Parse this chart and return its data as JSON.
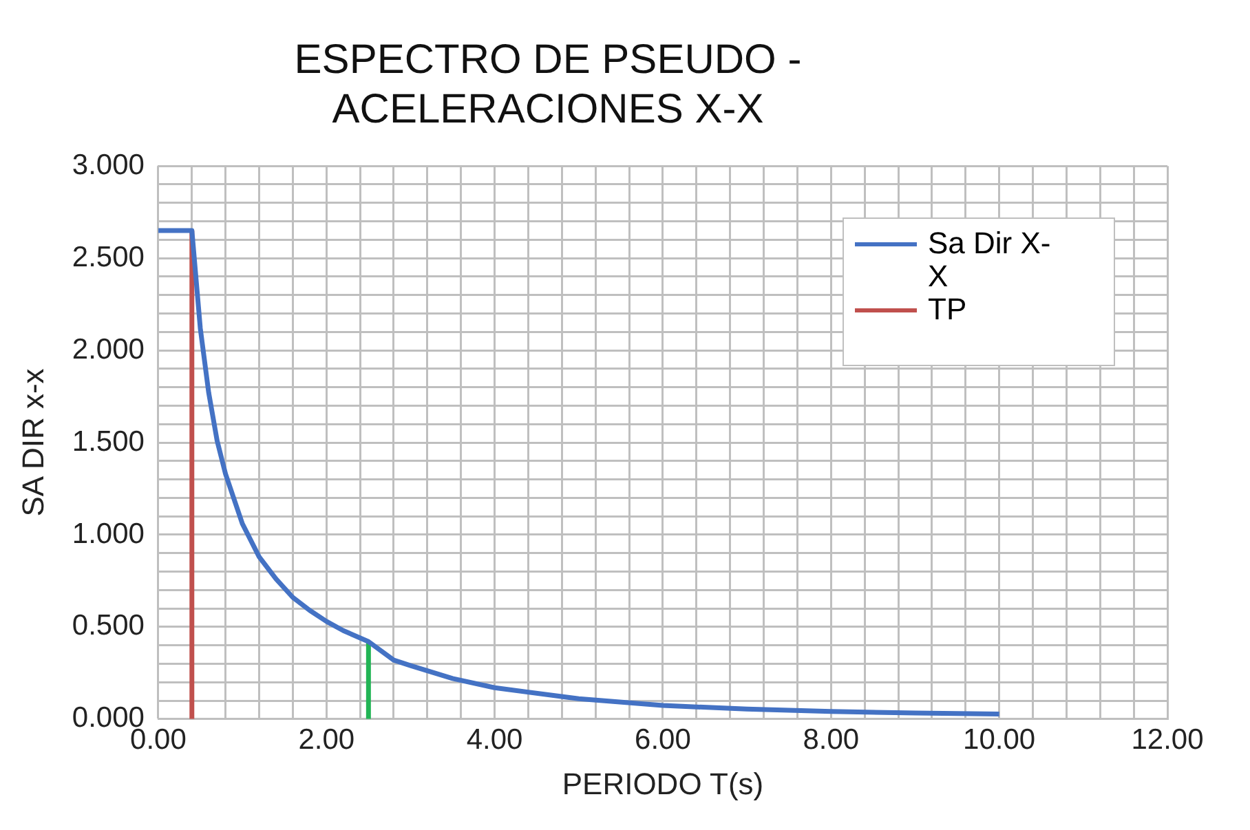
{
  "chart_data": {
    "type": "line",
    "title": "ESPECTRO DE PSEUDO - ACELERACIONES X-X",
    "xlabel": "PERIODO T(s)",
    "ylabel": "SA DIR x-x",
    "xlim": [
      0,
      12
    ],
    "xticks": [
      {
        "value": 0,
        "label": "0.00"
      },
      {
        "value": 0.4,
        "label": null
      },
      {
        "value": 0.8,
        "label": null
      },
      {
        "value": 1.2,
        "label": null
      },
      {
        "value": 1.6,
        "label": null
      },
      {
        "value": 2,
        "label": "2.00"
      },
      {
        "value": 2.4,
        "label": null
      },
      {
        "value": 2.8,
        "label": null
      },
      {
        "value": 3.2,
        "label": null
      },
      {
        "value": 3.6,
        "label": null
      },
      {
        "value": 4,
        "label": "4.00"
      },
      {
        "value": 4.4,
        "label": null
      },
      {
        "value": 4.8,
        "label": null
      },
      {
        "value": 5.2,
        "label": null
      },
      {
        "value": 5.6,
        "label": null
      },
      {
        "value": 6,
        "label": "6.00"
      },
      {
        "value": 6.4,
        "label": null
      },
      {
        "value": 6.8,
        "label": null
      },
      {
        "value": 7.2,
        "label": null
      },
      {
        "value": 7.6,
        "label": null
      },
      {
        "value": 8,
        "label": "8.00"
      },
      {
        "value": 8.4,
        "label": null
      },
      {
        "value": 8.8,
        "label": null
      },
      {
        "value": 9.2,
        "label": null
      },
      {
        "value": 9.6,
        "label": null
      },
      {
        "value": 10,
        "label": "10.00"
      },
      {
        "value": 10.4,
        "label": null
      },
      {
        "value": 10.8,
        "label": null
      },
      {
        "value": 11.2,
        "label": null
      },
      {
        "value": 11.6,
        "label": null
      },
      {
        "value": 12,
        "label": "12.00"
      }
    ],
    "ylim": [
      0,
      3
    ],
    "yticks": [
      {
        "value": 0,
        "label": "0.000"
      },
      {
        "value": 0.1,
        "label": null
      },
      {
        "value": 0.2,
        "label": null
      },
      {
        "value": 0.3,
        "label": null
      },
      {
        "value": 0.4,
        "label": null
      },
      {
        "value": 0.5,
        "label": "0.500"
      },
      {
        "value": 0.6,
        "label": null
      },
      {
        "value": 0.7,
        "label": null
      },
      {
        "value": 0.8,
        "label": null
      },
      {
        "value": 0.9,
        "label": null
      },
      {
        "value": 1,
        "label": "1.000"
      },
      {
        "value": 1.1,
        "label": null
      },
      {
        "value": 1.2,
        "label": null
      },
      {
        "value": 1.3,
        "label": null
      },
      {
        "value": 1.4,
        "label": null
      },
      {
        "value": 1.5,
        "label": "1.500"
      },
      {
        "value": 1.6,
        "label": null
      },
      {
        "value": 1.7,
        "label": null
      },
      {
        "value": 1.8,
        "label": null
      },
      {
        "value": 1.9,
        "label": null
      },
      {
        "value": 2,
        "label": "2.000"
      },
      {
        "value": 2.1,
        "label": null
      },
      {
        "value": 2.2,
        "label": null
      },
      {
        "value": 2.3,
        "label": null
      },
      {
        "value": 2.4,
        "label": null
      },
      {
        "value": 2.5,
        "label": "2.500"
      },
      {
        "value": 2.6,
        "label": null
      },
      {
        "value": 2.7,
        "label": null
      },
      {
        "value": 2.8,
        "label": null
      },
      {
        "value": 2.9,
        "label": null
      },
      {
        "value": 3,
        "label": "3.000"
      }
    ],
    "grid": true,
    "legend": "top right",
    "series": [
      {
        "name": "Sa Dir X-X",
        "color": "#4472c4",
        "x": [
          0,
          0.4,
          0.5,
          0.6,
          0.7,
          0.8,
          1.0,
          1.2,
          1.4,
          1.6,
          1.8,
          2.0,
          2.2,
          2.5,
          2.8,
          3.0,
          3.5,
          4.0,
          5.0,
          6.0,
          7.0,
          8.0,
          9.0,
          10.0
        ],
        "values": [
          2.65,
          2.65,
          2.12,
          1.77,
          1.51,
          1.33,
          1.06,
          0.88,
          0.76,
          0.66,
          0.59,
          0.53,
          0.48,
          0.42,
          0.32,
          0.29,
          0.22,
          0.17,
          0.11,
          0.074,
          0.054,
          0.041,
          0.033,
          0.027
        ]
      },
      {
        "name": "TP",
        "color": "#c0504d",
        "x": [
          0.4,
          0.4
        ],
        "values": [
          0,
          2.65
        ]
      },
      {
        "color": "#22b455",
        "x": [
          2.5,
          2.5
        ],
        "values": [
          0,
          0.42
        ]
      }
    ]
  }
}
